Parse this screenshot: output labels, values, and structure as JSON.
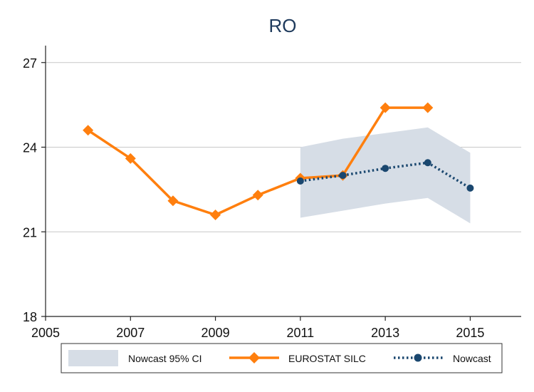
{
  "chart_data": {
    "type": "line",
    "title": "RO",
    "xlabel": "",
    "ylabel": "",
    "xlim": [
      2005,
      2016.2
    ],
    "ylim": [
      18,
      27.6
    ],
    "xticks": [
      2005,
      2007,
      2009,
      2011,
      2013,
      2015
    ],
    "yticks": [
      18,
      21,
      24,
      27
    ],
    "grid": true,
    "legend_position": "bottom",
    "series": [
      {
        "name": "EUROSTAT SILC",
        "style": "solid-line-diamond-markers",
        "color": "#ff7f0e",
        "x": [
          2006,
          2007,
          2008,
          2009,
          2010,
          2011,
          2012,
          2013,
          2014
        ],
        "y": [
          24.6,
          23.6,
          22.1,
          21.6,
          22.3,
          22.9,
          23.0,
          25.4,
          25.4
        ]
      },
      {
        "name": "Nowcast",
        "style": "dotted-line-circle-markers",
        "color": "#1a476f",
        "x": [
          2011,
          2012,
          2013,
          2014,
          2015
        ],
        "y": [
          22.8,
          23.0,
          23.25,
          23.45,
          22.55
        ]
      }
    ],
    "band": {
      "name": "Nowcast 95% CI",
      "color": "#d6dde6",
      "x": [
        2011,
        2012,
        2013,
        2014,
        2015
      ],
      "lower": [
        21.5,
        21.75,
        22.0,
        22.2,
        21.3
      ],
      "upper": [
        24.0,
        24.3,
        24.5,
        24.7,
        23.8
      ]
    }
  }
}
